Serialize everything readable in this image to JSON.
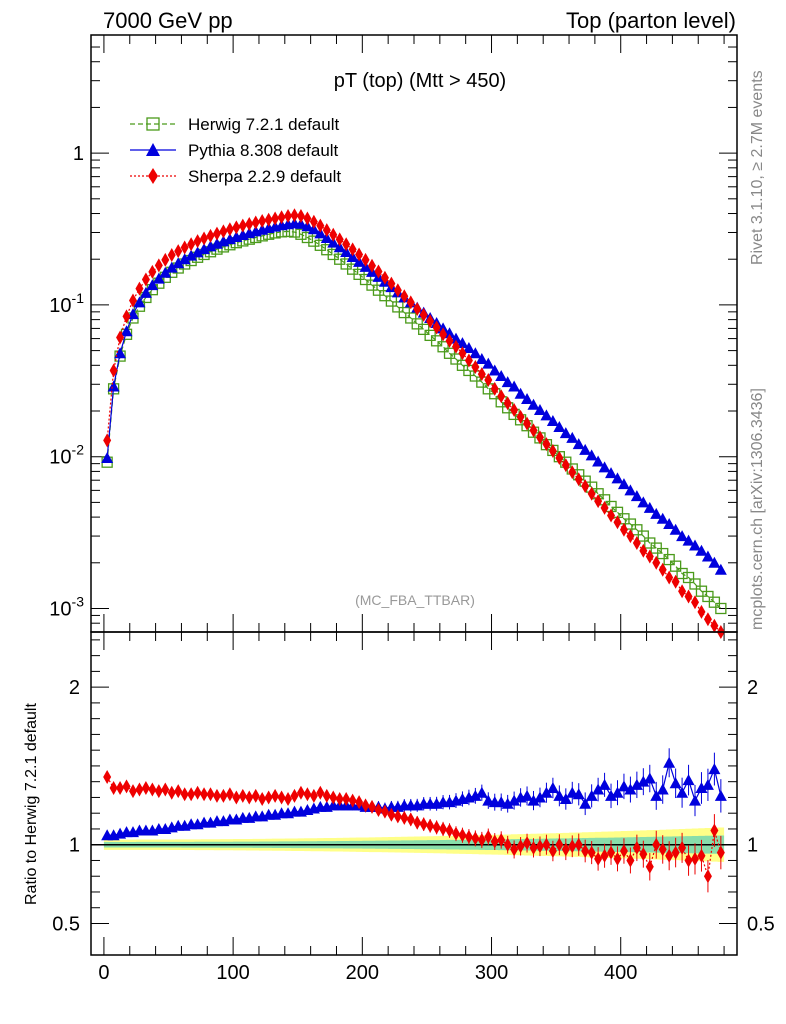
{
  "header": {
    "left": "7000 GeV pp",
    "right": "Top (parton level)"
  },
  "side": {
    "top": "Rivet 3.1.10, ≥ 2.7M events",
    "bottom": "mcplots.cern.ch [arXiv:1306.3436]"
  },
  "chart_data": [
    {
      "type": "line",
      "panel": "main",
      "title": "pT (top) (Mtt > 450)",
      "annotation": "(MC_FBA_TTBAR)",
      "yscale": "log",
      "xlim": [
        -10,
        490
      ],
      "ylim": [
        0.0007,
        6
      ],
      "ytick_labels": [
        "10^-3",
        "10^-2",
        "10^-1",
        "1"
      ],
      "ytick_values": [
        0.001,
        0.01,
        0.1,
        1
      ],
      "legend": "top-left",
      "x": [
        2.5,
        7.5,
        12.5,
        17.5,
        22.5,
        27.5,
        32.5,
        37.5,
        42.5,
        47.5,
        52.5,
        57.5,
        62.5,
        67.5,
        72.5,
        77.5,
        82.5,
        87.5,
        92.5,
        97.5,
        102.5,
        107.5,
        112.5,
        117.5,
        122.5,
        127.5,
        132.5,
        137.5,
        142.5,
        147.5,
        152.5,
        157.5,
        162.5,
        167.5,
        172.5,
        177.5,
        182.5,
        187.5,
        192.5,
        197.5,
        202.5,
        207.5,
        212.5,
        217.5,
        222.5,
        227.5,
        232.5,
        237.5,
        242.5,
        247.5,
        252.5,
        257.5,
        262.5,
        267.5,
        272.5,
        277.5,
        282.5,
        287.5,
        292.5,
        297.5,
        302.5,
        307.5,
        312.5,
        317.5,
        322.5,
        327.5,
        332.5,
        337.5,
        342.5,
        347.5,
        352.5,
        357.5,
        362.5,
        367.5,
        372.5,
        377.5,
        382.5,
        387.5,
        392.5,
        397.5,
        402.5,
        407.5,
        412.5,
        417.5,
        422.5,
        427.5,
        432.5,
        437.5,
        442.5,
        447.5,
        452.5,
        457.5,
        462.5,
        467.5,
        472.5,
        477.5
      ],
      "series": [
        {
          "name": "Herwig 7.2.1 default",
          "color": "#4a9a1a",
          "marker": "open-square",
          "line": "dashed",
          "values": [
            0.0092,
            0.028,
            0.046,
            0.064,
            0.082,
            0.098,
            0.112,
            0.126,
            0.139,
            0.152,
            0.164,
            0.175,
            0.186,
            0.196,
            0.206,
            0.215,
            0.224,
            0.233,
            0.241,
            0.249,
            0.257,
            0.264,
            0.271,
            0.278,
            0.285,
            0.292,
            0.298,
            0.303,
            0.305,
            0.302,
            0.292,
            0.278,
            0.263,
            0.247,
            0.231,
            0.215,
            0.2,
            0.186,
            0.172,
            0.159,
            0.147,
            0.135,
            0.125,
            0.115,
            0.106,
            0.097,
            0.089,
            0.082,
            0.075,
            0.069,
            0.063,
            0.058,
            0.053,
            0.048,
            0.044,
            0.04,
            0.037,
            0.034,
            0.031,
            0.028,
            0.026,
            0.023,
            0.021,
            0.019,
            0.0175,
            0.016,
            0.0145,
            0.0133,
            0.012,
            0.011,
            0.01,
            0.0092,
            0.0083,
            0.0076,
            0.0069,
            0.0063,
            0.0057,
            0.0052,
            0.0047,
            0.0043,
            0.0039,
            0.0036,
            0.0033,
            0.003,
            0.0027,
            0.0025,
            0.0023,
            0.0021,
            0.0019,
            0.0017,
            0.0016,
            0.00145,
            0.0013,
            0.0012,
            0.0011,
            0.001
          ]
        },
        {
          "name": "Pythia 8.308 default",
          "color": "#0000dd",
          "marker": "filled-triangle",
          "line": "solid",
          "values": [
            0.0098,
            0.029,
            0.048,
            0.067,
            0.087,
            0.104,
            0.12,
            0.135,
            0.149,
            0.163,
            0.176,
            0.188,
            0.2,
            0.211,
            0.222,
            0.233,
            0.243,
            0.253,
            0.262,
            0.271,
            0.28,
            0.289,
            0.297,
            0.305,
            0.313,
            0.321,
            0.328,
            0.335,
            0.34,
            0.345,
            0.342,
            0.33,
            0.315,
            0.296,
            0.276,
            0.257,
            0.24,
            0.223,
            0.207,
            0.192,
            0.178,
            0.165,
            0.153,
            0.142,
            0.131,
            0.121,
            0.112,
            0.104,
            0.096,
            0.089,
            0.082,
            0.076,
            0.07,
            0.065,
            0.06,
            0.056,
            0.052,
            0.048,
            0.044,
            0.041,
            0.037,
            0.034,
            0.031,
            0.029,
            0.026,
            0.024,
            0.022,
            0.0203,
            0.0187,
            0.0172,
            0.0157,
            0.0143,
            0.0133,
            0.0121,
            0.0111,
            0.0102,
            0.0093,
            0.0085,
            0.0078,
            0.0072,
            0.0066,
            0.006,
            0.0055,
            0.005,
            0.0046,
            0.0042,
            0.0039,
            0.0036,
            0.0033,
            0.003,
            0.0028,
            0.0026,
            0.0024,
            0.0022,
            0.002,
            0.0018
          ]
        },
        {
          "name": "Sherpa 2.2.9 default",
          "color": "#ee0000",
          "marker": "filled-diamond",
          "line": "dotted",
          "values": [
            0.0128,
            0.037,
            0.061,
            0.084,
            0.107,
            0.128,
            0.147,
            0.165,
            0.182,
            0.198,
            0.213,
            0.226,
            0.239,
            0.251,
            0.263,
            0.274,
            0.285,
            0.295,
            0.305,
            0.315,
            0.324,
            0.333,
            0.341,
            0.349,
            0.357,
            0.364,
            0.371,
            0.378,
            0.385,
            0.39,
            0.385,
            0.371,
            0.353,
            0.333,
            0.311,
            0.29,
            0.27,
            0.251,
            0.232,
            0.215,
            0.198,
            0.181,
            0.166,
            0.151,
            0.138,
            0.125,
            0.114,
            0.104,
            0.094,
            0.086,
            0.078,
            0.071,
            0.064,
            0.058,
            0.053,
            0.048,
            0.043,
            0.039,
            0.035,
            0.032,
            0.028,
            0.025,
            0.0225,
            0.0203,
            0.0183,
            0.0165,
            0.0149,
            0.0134,
            0.0121,
            0.0109,
            0.0098,
            0.0088,
            0.0079,
            0.0071,
            0.0064,
            0.0057,
            0.0051,
            0.0046,
            0.0041,
            0.0037,
            0.0033,
            0.003,
            0.0027,
            0.0024,
            0.0022,
            0.002,
            0.0018,
            0.0016,
            0.0015,
            0.0013,
            0.0012,
            0.0011,
            0.00095,
            0.00085,
            0.00077,
            0.0007
          ]
        }
      ]
    },
    {
      "type": "line",
      "panel": "ratio",
      "ylabel": "Ratio to Herwig 7.2.1 default",
      "xlim": [
        -10,
        490
      ],
      "ylim": [
        0.3,
        2.35
      ],
      "xtick_labels": [
        "0",
        "100",
        "200",
        "300",
        "400"
      ],
      "xtick_values": [
        0,
        100,
        200,
        300,
        400
      ],
      "ytick_labels": [
        "0.5",
        "1",
        "2"
      ],
      "ytick_values": [
        0.5,
        1,
        2
      ],
      "reference": 1,
      "band_colors": [
        "#ffff88",
        "#88ddaa"
      ],
      "series": [
        {
          "name": "Pythia 8.308 default",
          "color": "#0000dd",
          "values": [
            1.06,
            1.06,
            1.07,
            1.08,
            1.08,
            1.09,
            1.09,
            1.09,
            1.1,
            1.1,
            1.11,
            1.12,
            1.12,
            1.13,
            1.13,
            1.14,
            1.14,
            1.15,
            1.15,
            1.16,
            1.16,
            1.17,
            1.17,
            1.18,
            1.18,
            1.19,
            1.19,
            1.2,
            1.2,
            1.21,
            1.21,
            1.22,
            1.23,
            1.24,
            1.24,
            1.25,
            1.25,
            1.25,
            1.25,
            1.25,
            1.24,
            1.24,
            1.24,
            1.23,
            1.24,
            1.24,
            1.25,
            1.25,
            1.25,
            1.26,
            1.26,
            1.26,
            1.27,
            1.27,
            1.28,
            1.29,
            1.3,
            1.31,
            1.33,
            1.28,
            1.27,
            1.27,
            1.26,
            1.28,
            1.3,
            1.31,
            1.28,
            1.3,
            1.33,
            1.36,
            1.31,
            1.29,
            1.33,
            1.32,
            1.26,
            1.31,
            1.35,
            1.38,
            1.31,
            1.33,
            1.37,
            1.35,
            1.38,
            1.4,
            1.42,
            1.31,
            1.35,
            1.52,
            1.39,
            1.33,
            1.41,
            1.28,
            1.36,
            1.38,
            1.48,
            1.31
          ]
        },
        {
          "name": "Sherpa 2.2.9 default",
          "color": "#ee0000",
          "values": [
            1.43,
            1.36,
            1.36,
            1.37,
            1.34,
            1.35,
            1.36,
            1.35,
            1.34,
            1.35,
            1.33,
            1.34,
            1.32,
            1.32,
            1.33,
            1.32,
            1.32,
            1.31,
            1.31,
            1.32,
            1.3,
            1.31,
            1.3,
            1.31,
            1.29,
            1.3,
            1.31,
            1.3,
            1.29,
            1.31,
            1.33,
            1.32,
            1.31,
            1.33,
            1.31,
            1.3,
            1.29,
            1.29,
            1.28,
            1.27,
            1.25,
            1.24,
            1.22,
            1.21,
            1.19,
            1.18,
            1.17,
            1.16,
            1.14,
            1.13,
            1.12,
            1.11,
            1.1,
            1.09,
            1.07,
            1.06,
            1.05,
            1.04,
            1.03,
            1.05,
            1.02,
            1.03,
            1.0,
            0.97,
            0.99,
            1.01,
            0.98,
            0.99,
            1.0,
            0.96,
            1.0,
            0.97,
            0.99,
            1.0,
            0.96,
            0.95,
            0.91,
            0.93,
            0.95,
            0.91,
            0.96,
            0.9,
            0.98,
            0.94,
            0.86,
            1.0,
            0.97,
            0.93,
            0.95,
            0.98,
            0.9,
            0.91,
            0.93,
            0.8,
            1.09,
            0.95
          ]
        }
      ]
    }
  ]
}
